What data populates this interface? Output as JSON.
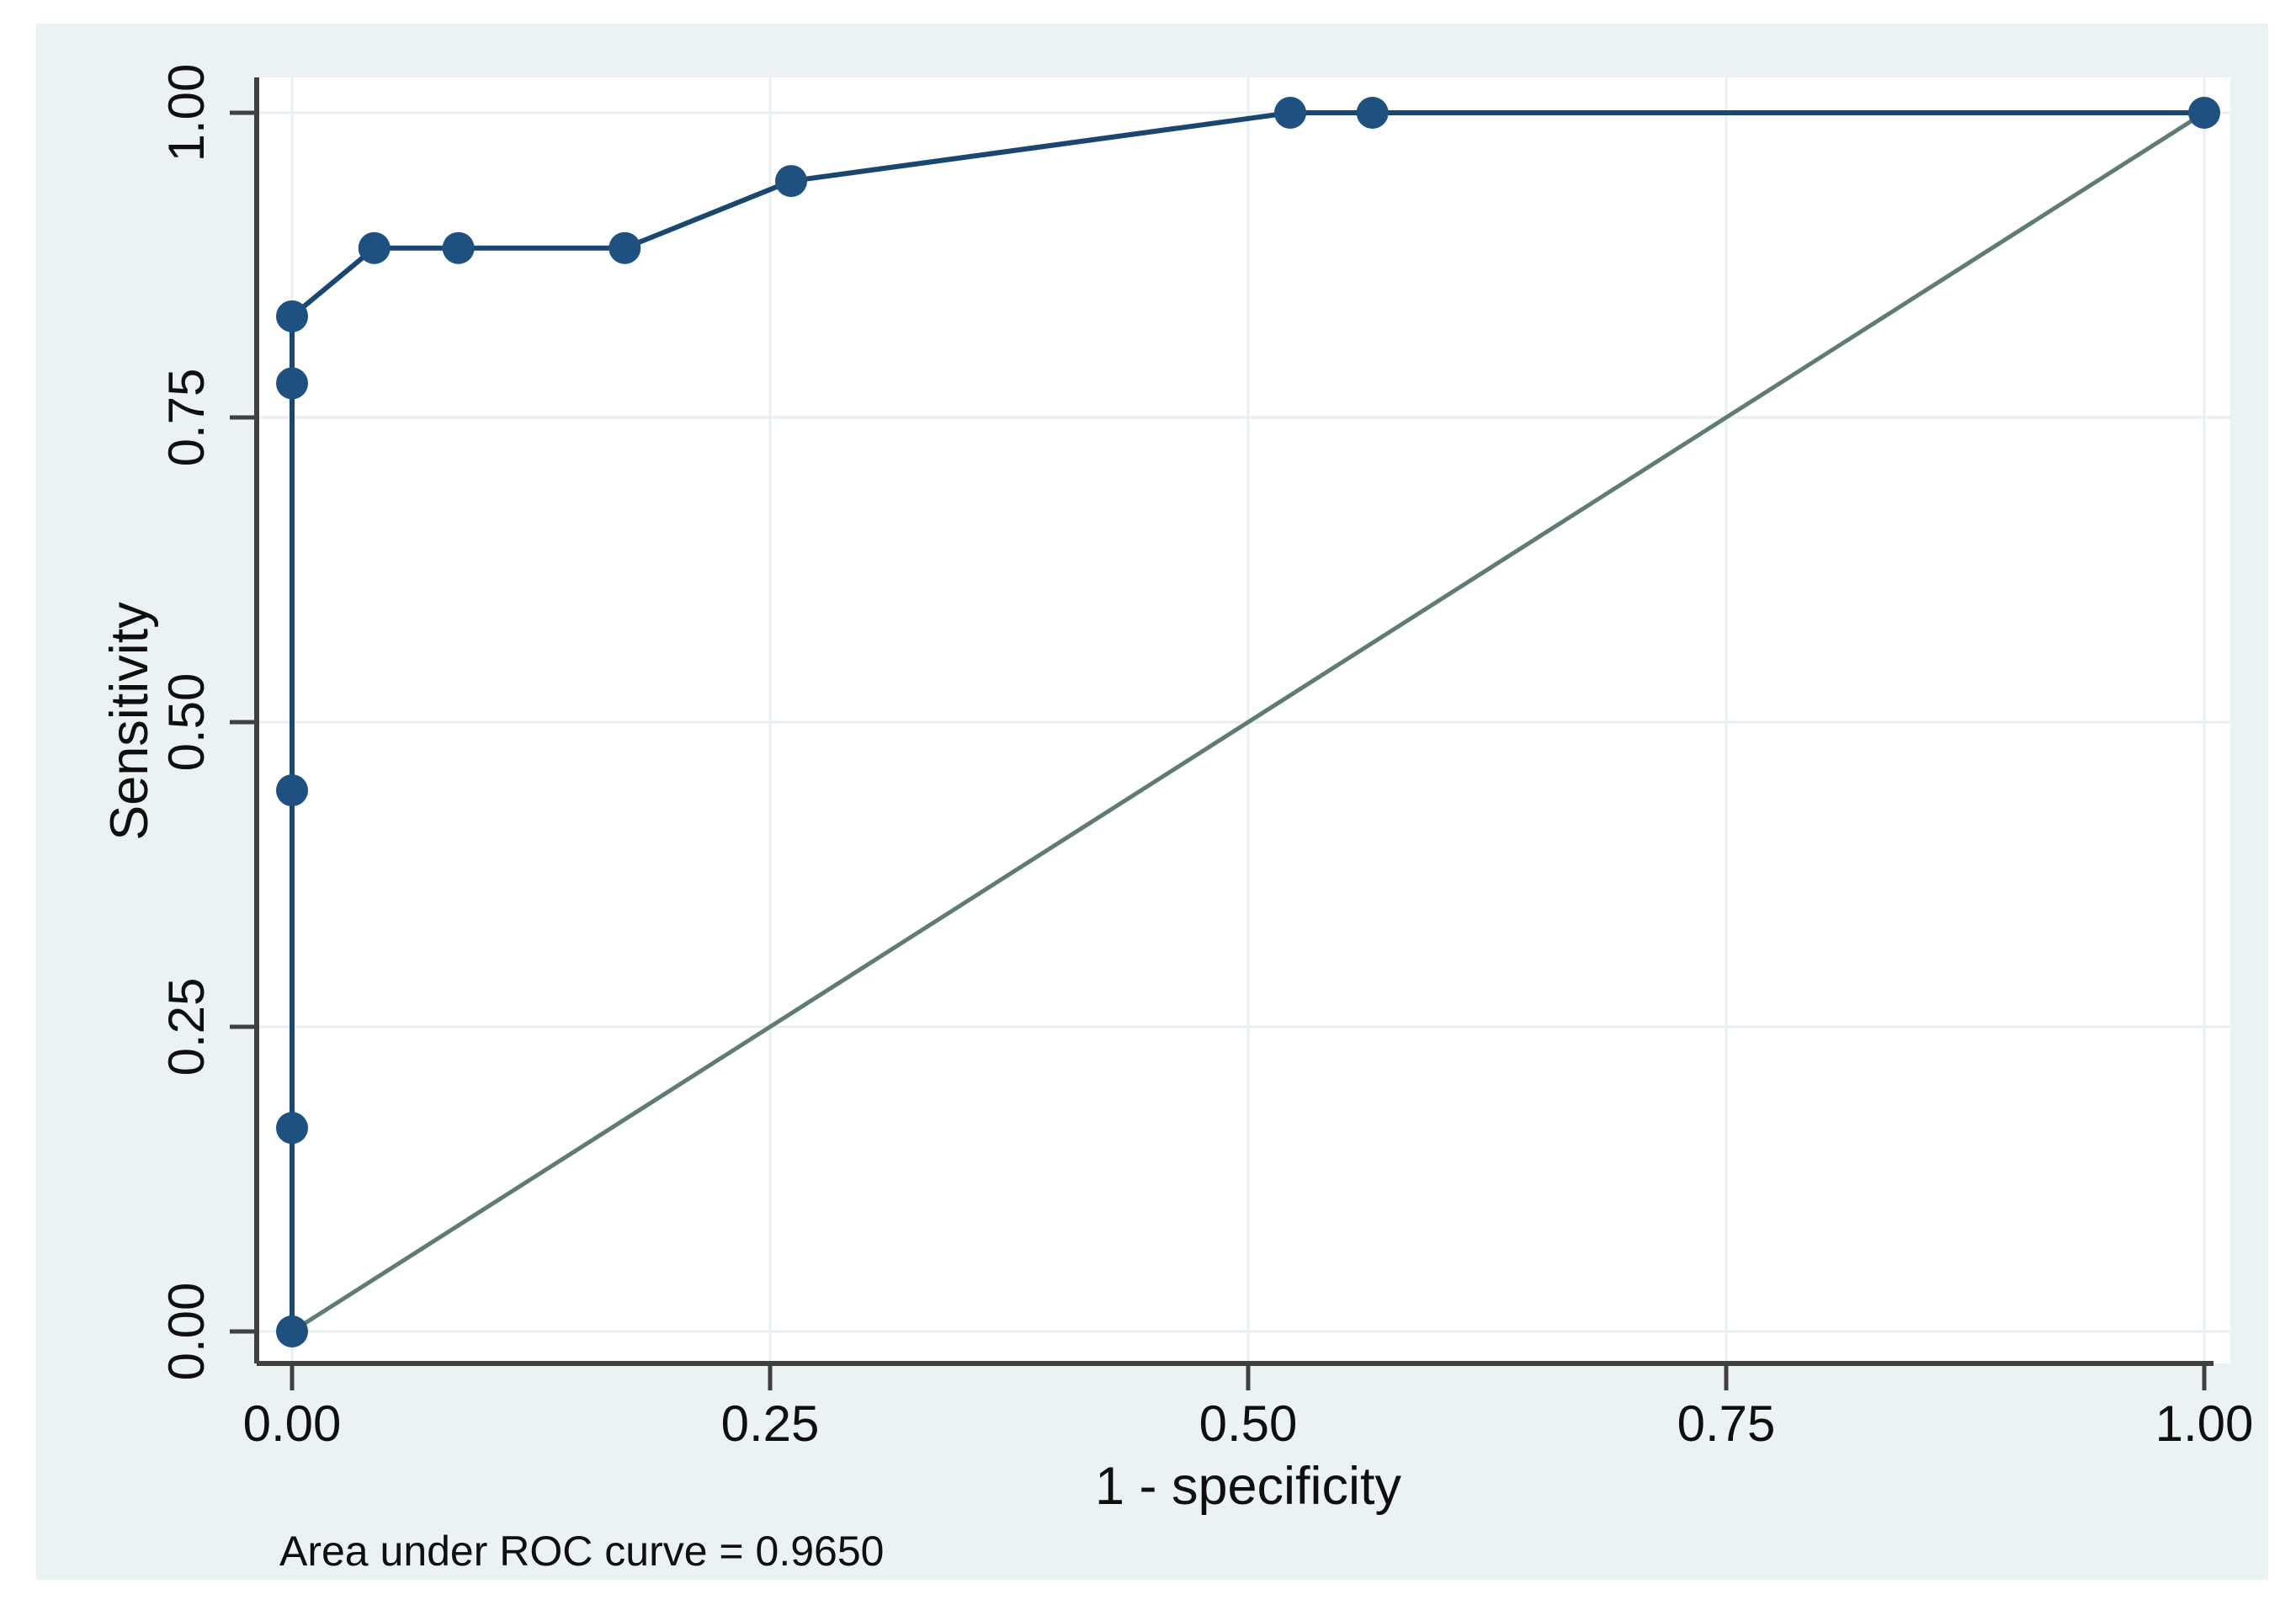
{
  "figure": {
    "caption": "Area under ROC curve = 0.9650",
    "auc_value": "0.9650"
  },
  "colors": {
    "figure_background": "#eaf2f3",
    "plot_background": "#ffffff",
    "gridline": "#e7eff1",
    "axis_line": "#404040",
    "tick_mark": "#404040",
    "text": "#0f0f0f",
    "roc_line": "#1a476f",
    "roc_marker": "#1f5180",
    "reference_line": "#5e7c75"
  },
  "chart_data": {
    "type": "line",
    "title": "",
    "xlabel": "1 - specificity",
    "ylabel": "Sensitivity",
    "xlim": [
      0,
      1
    ],
    "ylim": [
      0,
      1
    ],
    "grid": true,
    "legend_position": "none",
    "xticks": {
      "values": [
        0,
        0.25,
        0.5,
        0.75,
        1
      ],
      "labels": [
        "0.00",
        "0.25",
        "0.50",
        "0.75",
        "1.00"
      ]
    },
    "yticks": {
      "values": [
        0,
        0.25,
        0.5,
        0.75,
        1
      ],
      "labels": [
        "0.00",
        "0.25",
        "0.50",
        "0.75",
        "1.00"
      ]
    },
    "series": [
      {
        "name": "ROC curve",
        "color": "#1a476f",
        "marker": "circle",
        "marker_color": "#1f5180",
        "points": [
          [
            0.0,
            0.0
          ],
          [
            0.0,
            0.167
          ],
          [
            0.0,
            0.444
          ],
          [
            0.0,
            0.778
          ],
          [
            0.0,
            0.833
          ],
          [
            0.043,
            0.889
          ],
          [
            0.087,
            0.889
          ],
          [
            0.174,
            0.889
          ],
          [
            0.261,
            0.944
          ],
          [
            0.522,
            1.0
          ],
          [
            0.565,
            1.0
          ],
          [
            1.0,
            1.0
          ]
        ]
      },
      {
        "name": "45-degree reference line",
        "color": "#5e7c75",
        "marker": "none",
        "points": [
          [
            0,
            0
          ],
          [
            1,
            1
          ]
        ]
      }
    ],
    "annotation": "Area under ROC curve = 0.9650"
  }
}
